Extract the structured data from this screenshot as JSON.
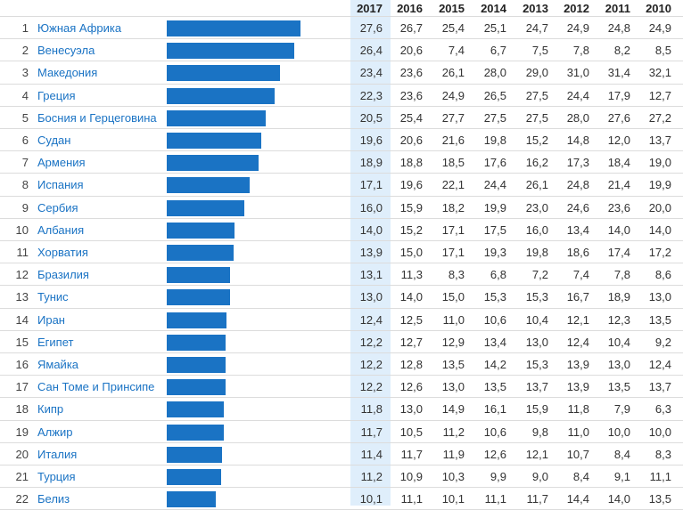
{
  "chart_data": {
    "type": "table",
    "years": [
      "2017",
      "2016",
      "2015",
      "2014",
      "2013",
      "2012",
      "2011",
      "2010"
    ],
    "highlight_year": "2017",
    "bar_column": "2017",
    "colors": {
      "bar": "#1a73c4",
      "link": "#1a73c4",
      "highlight": "#dfeefb"
    },
    "rows": [
      {
        "rank": "1",
        "country": "Южная Африка",
        "values": [
          "27,6",
          "26,7",
          "25,4",
          "25,1",
          "24,7",
          "24,9",
          "24,8",
          "24,9"
        ]
      },
      {
        "rank": "2",
        "country": "Венесуэла",
        "values": [
          "26,4",
          "20,6",
          "7,4",
          "6,7",
          "7,5",
          "7,8",
          "8,2",
          "8,5"
        ]
      },
      {
        "rank": "3",
        "country": "Македония",
        "values": [
          "23,4",
          "23,6",
          "26,1",
          "28,0",
          "29,0",
          "31,0",
          "31,4",
          "32,1"
        ]
      },
      {
        "rank": "4",
        "country": "Греция",
        "values": [
          "22,3",
          "23,6",
          "24,9",
          "26,5",
          "27,5",
          "24,4",
          "17,9",
          "12,7"
        ]
      },
      {
        "rank": "5",
        "country": "Босния и Герцеговина",
        "values": [
          "20,5",
          "25,4",
          "27,7",
          "27,5",
          "27,5",
          "28,0",
          "27,6",
          "27,2"
        ]
      },
      {
        "rank": "6",
        "country": "Судан",
        "values": [
          "19,6",
          "20,6",
          "21,6",
          "19,8",
          "15,2",
          "14,8",
          "12,0",
          "13,7"
        ]
      },
      {
        "rank": "7",
        "country": "Армения",
        "values": [
          "18,9",
          "18,8",
          "18,5",
          "17,6",
          "16,2",
          "17,3",
          "18,4",
          "19,0"
        ]
      },
      {
        "rank": "8",
        "country": "Испания",
        "values": [
          "17,1",
          "19,6",
          "22,1",
          "24,4",
          "26,1",
          "24,8",
          "21,4",
          "19,9"
        ]
      },
      {
        "rank": "9",
        "country": "Сербия",
        "values": [
          "16,0",
          "15,9",
          "18,2",
          "19,9",
          "23,0",
          "24,6",
          "23,6",
          "20,0"
        ]
      },
      {
        "rank": "10",
        "country": "Албания",
        "values": [
          "14,0",
          "15,2",
          "17,1",
          "17,5",
          "16,0",
          "13,4",
          "14,0",
          "14,0"
        ]
      },
      {
        "rank": "11",
        "country": "Хорватия",
        "values": [
          "13,9",
          "15,0",
          "17,1",
          "19,3",
          "19,8",
          "18,6",
          "17,4",
          "17,2"
        ]
      },
      {
        "rank": "12",
        "country": "Бразилия",
        "values": [
          "13,1",
          "11,3",
          "8,3",
          "6,8",
          "7,2",
          "7,4",
          "7,8",
          "8,6"
        ]
      },
      {
        "rank": "13",
        "country": "Тунис",
        "values": [
          "13,0",
          "14,0",
          "15,0",
          "15,3",
          "15,3",
          "16,7",
          "18,9",
          "13,0"
        ]
      },
      {
        "rank": "14",
        "country": "Иран",
        "values": [
          "12,4",
          "12,5",
          "11,0",
          "10,6",
          "10,4",
          "12,1",
          "12,3",
          "13,5"
        ]
      },
      {
        "rank": "15",
        "country": "Египет",
        "values": [
          "12,2",
          "12,7",
          "12,9",
          "13,4",
          "13,0",
          "12,4",
          "10,4",
          "9,2"
        ]
      },
      {
        "rank": "16",
        "country": "Ямайка",
        "values": [
          "12,2",
          "12,8",
          "13,5",
          "14,2",
          "15,3",
          "13,9",
          "13,0",
          "12,4"
        ]
      },
      {
        "rank": "17",
        "country": "Сан Томе и Принсипе",
        "values": [
          "12,2",
          "12,6",
          "13,0",
          "13,5",
          "13,7",
          "13,9",
          "13,5",
          "13,7"
        ]
      },
      {
        "rank": "18",
        "country": "Кипр",
        "values": [
          "11,8",
          "13,0",
          "14,9",
          "16,1",
          "15,9",
          "11,8",
          "7,9",
          "6,3"
        ]
      },
      {
        "rank": "19",
        "country": "Алжир",
        "values": [
          "11,7",
          "10,5",
          "11,2",
          "10,6",
          "9,8",
          "11,0",
          "10,0",
          "10,0"
        ]
      },
      {
        "rank": "20",
        "country": "Италия",
        "values": [
          "11,4",
          "11,7",
          "11,9",
          "12,6",
          "12,1",
          "10,7",
          "8,4",
          "8,3"
        ]
      },
      {
        "rank": "21",
        "country": "Турция",
        "values": [
          "11,2",
          "10,9",
          "10,3",
          "9,9",
          "9,0",
          "8,4",
          "9,1",
          "11,1"
        ]
      },
      {
        "rank": "22",
        "country": "Белиз",
        "values": [
          "10,1",
          "11,1",
          "10,1",
          "11,1",
          "11,7",
          "14,4",
          "14,0",
          "13,5"
        ]
      }
    ]
  }
}
